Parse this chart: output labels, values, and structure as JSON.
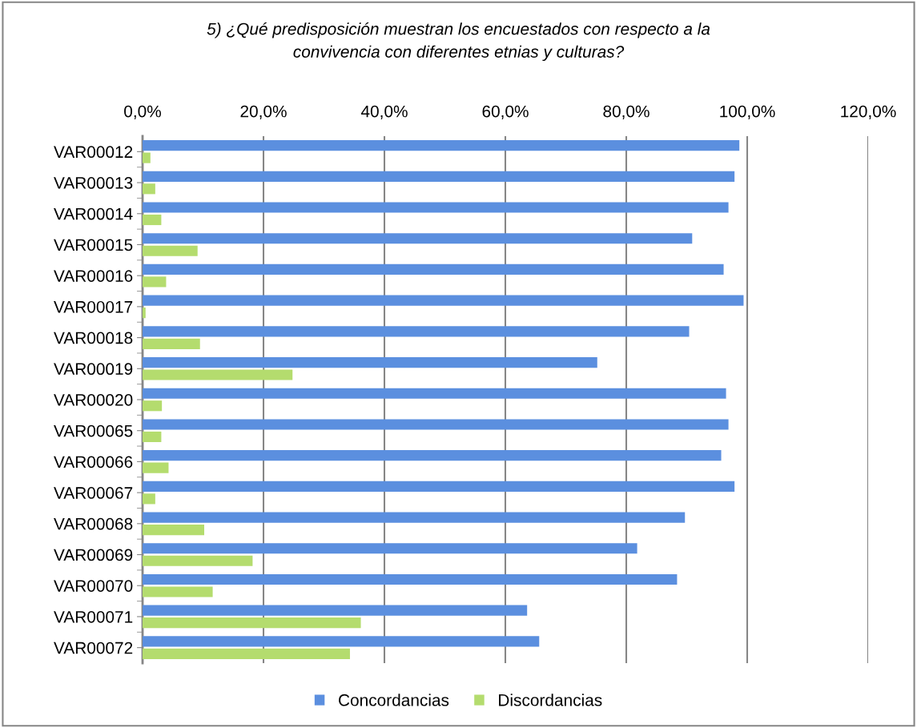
{
  "chart_data": {
    "type": "bar",
    "orientation": "horizontal",
    "title": "5) ¿Qué predisposición muestran los encuestados con respecto a la\nconvivencia con diferentes etnias y culturas?",
    "categories": [
      "VAR00012",
      "VAR00013",
      "VAR00014",
      "VAR00015",
      "VAR00016",
      "VAR00017",
      "VAR00018",
      "VAR00019",
      "VAR00020",
      "VAR00065",
      "VAR00066",
      "VAR00067",
      "VAR00068",
      "VAR00069",
      "VAR00070",
      "VAR00071",
      "VAR00072"
    ],
    "series": [
      {
        "name": "Concordancias",
        "color": "#5b8fdf",
        "values": [
          98.7,
          97.9,
          96.9,
          90.9,
          96.1,
          99.4,
          90.4,
          75.2,
          96.5,
          96.9,
          95.7,
          97.9,
          89.7,
          81.8,
          88.4,
          63.6,
          65.6
        ]
      },
      {
        "name": "Discordancias",
        "color": "#b4dc6e",
        "values": [
          1.3,
          2.1,
          3.1,
          9.1,
          3.9,
          0.5,
          9.5,
          24.8,
          3.2,
          3.1,
          4.3,
          2.1,
          10.2,
          18.2,
          11.6,
          36.1,
          34.3
        ]
      }
    ],
    "xlim": [
      0,
      120
    ],
    "xticks": [
      {
        "value": 0,
        "label": "0,0%"
      },
      {
        "value": 20,
        "label": "20,0%"
      },
      {
        "value": 40,
        "label": "40,0%"
      },
      {
        "value": 60,
        "label": "60,0%"
      },
      {
        "value": 80,
        "label": "80,0%"
      },
      {
        "value": 100,
        "label": "100,0%"
      },
      {
        "value": 120,
        "label": "120,0%"
      }
    ],
    "grid": "x",
    "legend": "bottom"
  }
}
